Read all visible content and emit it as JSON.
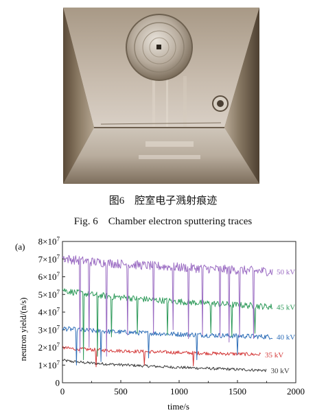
{
  "captions": {
    "cn": "图6　腔室电子溅射痕迹",
    "en": "Fig. 6　Chamber electron sputtering traces"
  },
  "chart_data": {
    "type": "line",
    "panel_label": "(a)",
    "xlabel": "time/s",
    "ylabel": "neutron yield/(n/s)",
    "xlim": [
      0,
      2000
    ],
    "ylim": [
      0,
      80000000
    ],
    "xticks": [
      "0",
      "500",
      "1000",
      "1500",
      "2000"
    ],
    "yticks": [
      {
        "base": "0",
        "exp": ""
      },
      {
        "base": "1×10",
        "exp": "7"
      },
      {
        "base": "2×10",
        "exp": "7"
      },
      {
        "base": "3×10",
        "exp": "7"
      },
      {
        "base": "4×10",
        "exp": "7"
      },
      {
        "base": "5×10",
        "exp": "7"
      },
      {
        "base": "6×10",
        "exp": "7"
      },
      {
        "base": "7×10",
        "exp": "7"
      },
      {
        "base": "8×10",
        "exp": "7"
      }
    ],
    "series": [
      {
        "name": "30 kV",
        "color": "#3a3a3a",
        "x_range": [
          0,
          1750
        ],
        "start": 13000000,
        "end": 7000000,
        "noise": 800000,
        "drops": []
      },
      {
        "name": "35 kV",
        "color": "#d43a3a",
        "x_range": [
          0,
          1700
        ],
        "start": 20000000,
        "end": 16000000,
        "noise": 1000000,
        "drops": [
          [
            290,
            9000000
          ],
          [
            700,
            10000000
          ],
          [
            1120,
            9500000
          ]
        ]
      },
      {
        "name": "40 kV",
        "color": "#2f6fb8",
        "x_range": [
          0,
          1800
        ],
        "start": 31000000,
        "end": 26000000,
        "noise": 1400000,
        "drops": [
          [
            120,
            10000000
          ],
          [
            330,
            12000000
          ],
          [
            740,
            14000000
          ],
          [
            1150,
            13000000
          ],
          [
            1500,
            16000000
          ]
        ]
      },
      {
        "name": "45 kV",
        "color": "#2e9a5a",
        "x_range": [
          0,
          1800
        ],
        "start": 53000000,
        "end": 43000000,
        "noise": 1800000,
        "drops": [
          [
            180,
            13000000
          ],
          [
            300,
            15000000
          ],
          [
            420,
            26000000
          ],
          [
            640,
            28000000
          ],
          [
            900,
            27000000
          ],
          [
            1270,
            28000000
          ],
          [
            1450,
            26000000
          ],
          [
            1650,
            28000000
          ]
        ]
      },
      {
        "name": "50 kV",
        "color": "#9a6bc2",
        "x_range": [
          0,
          1800
        ],
        "start": 71000000,
        "end": 63000000,
        "noise": 2600000,
        "drops": [
          [
            150,
            17000000
          ],
          [
            230,
            20000000
          ],
          [
            380,
            15000000
          ],
          [
            560,
            27000000
          ],
          [
            780,
            28000000
          ],
          [
            950,
            30000000
          ],
          [
            1080,
            25000000
          ],
          [
            1200,
            27000000
          ],
          [
            1350,
            26000000
          ],
          [
            1430,
            23000000
          ],
          [
            1520,
            26000000
          ],
          [
            1640,
            25000000
          ]
        ]
      }
    ]
  }
}
